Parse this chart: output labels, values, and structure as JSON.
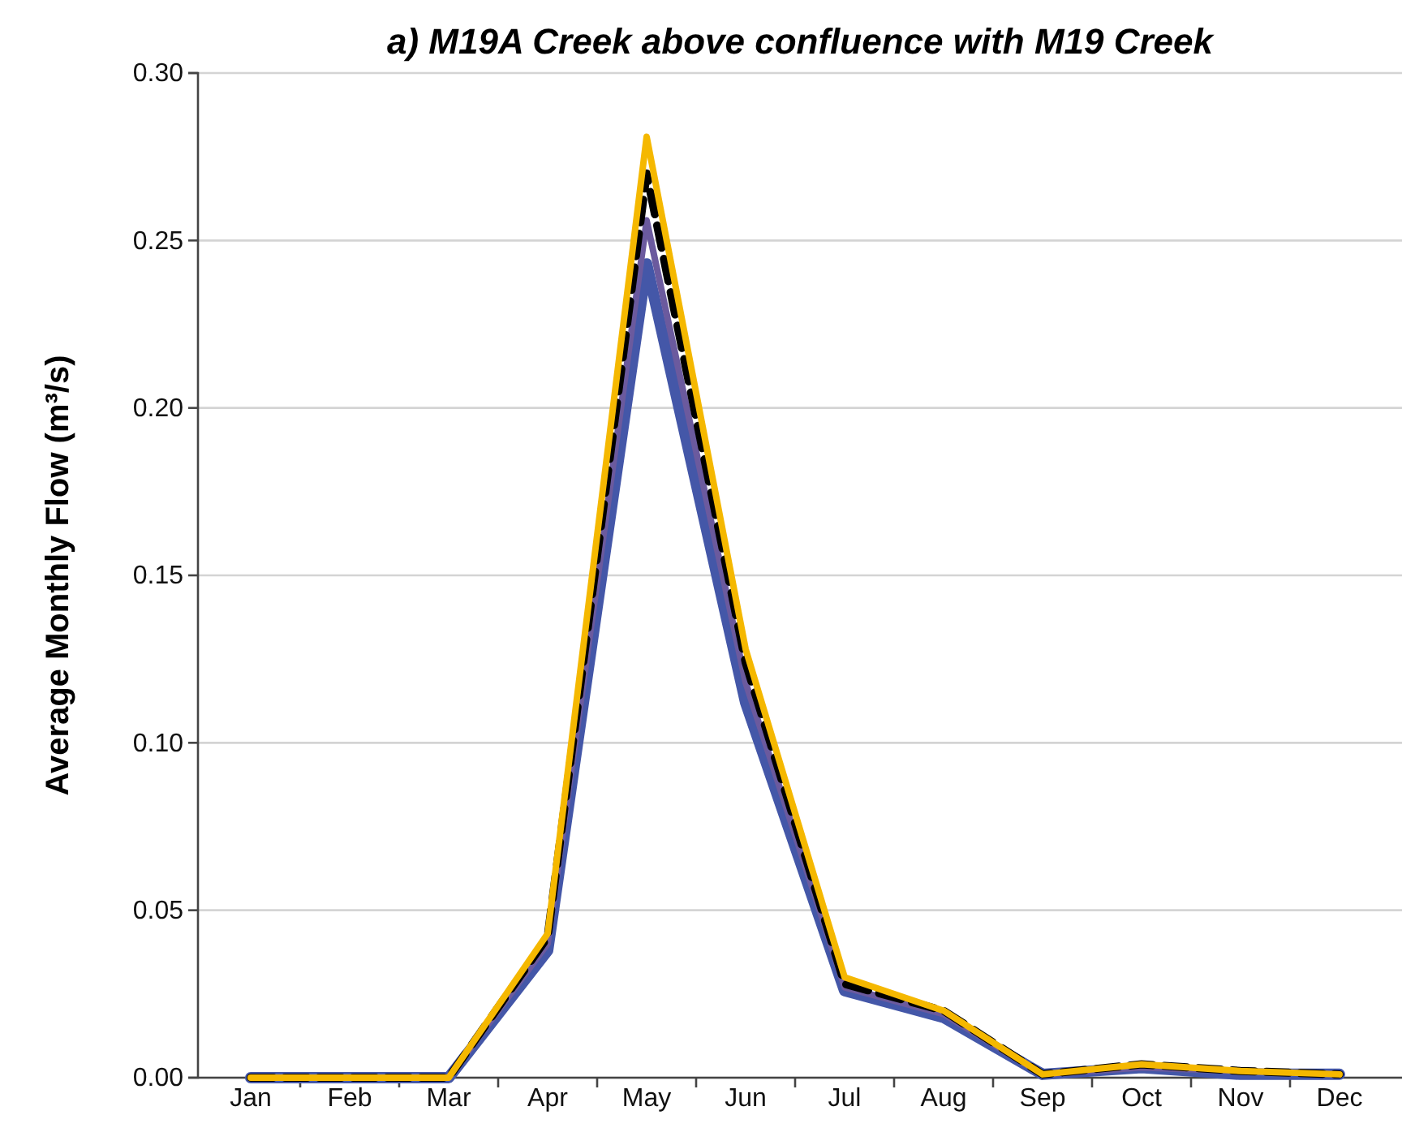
{
  "chart_data": {
    "type": "line",
    "title": "a) M19A Creek above confluence with M19 Creek",
    "ylabel": "Average Monthly Flow (m³/s)",
    "categories": [
      "Jan",
      "Feb",
      "Mar",
      "Apr",
      "May",
      "Jun",
      "Jul",
      "Aug",
      "Sep",
      "Oct",
      "Nov",
      "Dec"
    ],
    "ylim": [
      0,
      0.3
    ],
    "yticks": [
      {
        "value": 0,
        "label": "0.00"
      },
      {
        "value": 0.05,
        "label": "0.05"
      },
      {
        "value": 0.1,
        "label": "0.10"
      },
      {
        "value": 0.15,
        "label": "0.15"
      },
      {
        "value": 0.2,
        "label": "0.20"
      },
      {
        "value": 0.25,
        "label": "0.25"
      },
      {
        "value": 0.3,
        "label": "0.30"
      }
    ],
    "grid": "y",
    "marker": "none",
    "series": [
      {
        "color": "#4457a8",
        "line_style": "solid",
        "values": [
          0,
          0,
          0,
          0.038,
          0.243,
          0.112,
          0.026,
          0.018,
          0.001,
          0.003,
          0.001,
          0.001
        ]
      },
      {
        "color": "#6b5a9e",
        "line_style": "solid",
        "values": [
          0,
          0,
          0,
          0.04,
          0.256,
          0.118,
          0.027,
          0.019,
          0.001,
          0.003,
          0.002,
          0.001
        ]
      },
      {
        "color": "#000000",
        "line_style": "dashed",
        "values": [
          0,
          0,
          0,
          0.042,
          0.27,
          0.124,
          0.028,
          0.02,
          0.001,
          0.004,
          0.002,
          0.001
        ]
      },
      {
        "color": "#f5b800",
        "line_style": "solid",
        "values": [
          0,
          0,
          0,
          0.043,
          0.281,
          0.128,
          0.03,
          0.02,
          0.001,
          0.004,
          0.002,
          0.001
        ]
      }
    ]
  }
}
